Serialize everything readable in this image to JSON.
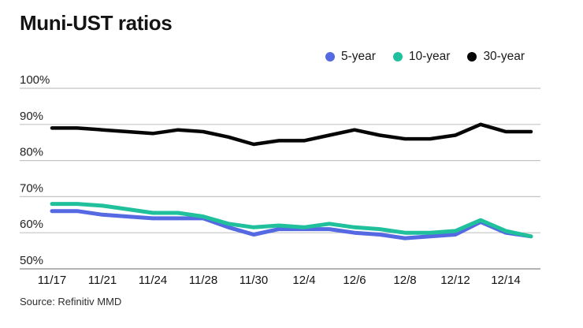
{
  "title": "Muni-UST ratios",
  "source": "Source: Refinitiv MMD",
  "legend": [
    {
      "label": "5-year",
      "color": "#5569e2"
    },
    {
      "label": "10-year",
      "color": "#20c09d"
    },
    {
      "label": "30-year",
      "color": "#060606"
    }
  ],
  "colors": {
    "gridline": "#c4c4c4",
    "axis_line": "#9a9a9a",
    "tick_text": "#1c1c1c"
  },
  "chart_data": {
    "type": "line",
    "x": [
      "11/17",
      "11/20",
      "11/21",
      "11/22",
      "11/24",
      "11/27",
      "11/28",
      "11/29",
      "11/30",
      "12/1",
      "12/4",
      "12/5",
      "12/6",
      "12/7",
      "12/8",
      "12/11",
      "12/12",
      "12/13",
      "12/14",
      "12/15"
    ],
    "x_tick_indices": [
      0,
      2,
      4,
      6,
      8,
      10,
      12,
      14,
      16,
      18
    ],
    "x_tick_labels": [
      "11/17",
      "11/21",
      "11/24",
      "11/28",
      "11/30",
      "12/4",
      "12/6",
      "12/8",
      "12/12",
      "12/14"
    ],
    "y_ticks": [
      50,
      60,
      70,
      80,
      90,
      100
    ],
    "y_tick_labels": [
      "50%",
      "60%",
      "70%",
      "80%",
      "90%",
      "100%"
    ],
    "ylim": [
      50,
      100
    ],
    "grid": true,
    "legend_position": "top-right",
    "series": [
      {
        "name": "5-year",
        "color": "#5569e2",
        "stroke_width": 5,
        "values": [
          66,
          66,
          65,
          64.5,
          64,
          64,
          64,
          61.5,
          59.5,
          61,
          61,
          61,
          60,
          59.5,
          58.5,
          59,
          59.5,
          63,
          60,
          59
        ]
      },
      {
        "name": "10-year",
        "color": "#20c09d",
        "stroke_width": 5,
        "values": [
          68,
          68,
          67.5,
          66.5,
          65.5,
          65.5,
          64.5,
          62.5,
          61.5,
          62,
          61.5,
          62.5,
          61.5,
          61,
          60,
          60,
          60.5,
          63.5,
          60.5,
          59
        ]
      },
      {
        "name": "30-year",
        "color": "#060606",
        "stroke_width": 4.5,
        "values": [
          89,
          89,
          88.5,
          88,
          87.5,
          88.5,
          88,
          86.5,
          84.5,
          85.5,
          85.5,
          87,
          88.5,
          87,
          86,
          86,
          87,
          90,
          88,
          88
        ]
      }
    ]
  }
}
